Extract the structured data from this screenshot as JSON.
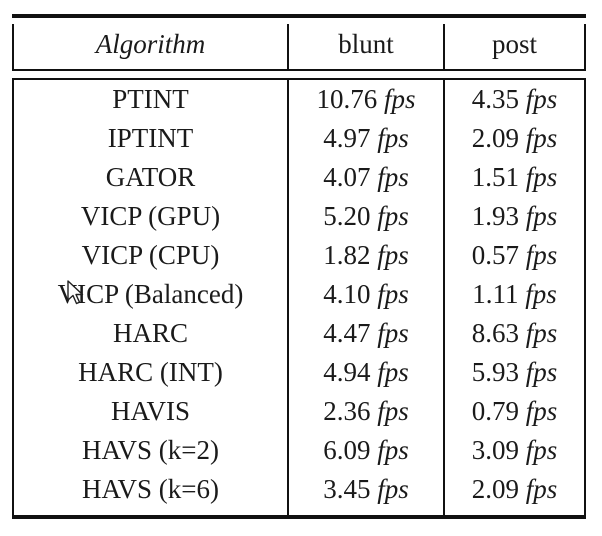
{
  "table": {
    "headers": {
      "algorithm": "Algorithm",
      "blunt": "blunt",
      "post": "post"
    },
    "unit": "fps",
    "rows": [
      {
        "algorithm": "PTINT",
        "blunt": "10.76",
        "post": "4.35"
      },
      {
        "algorithm": "IPTINT",
        "blunt": "4.97",
        "post": "2.09"
      },
      {
        "algorithm": "GATOR",
        "blunt": "4.07",
        "post": "1.51"
      },
      {
        "algorithm": "VICP (GPU)",
        "blunt": "5.20",
        "post": "1.93"
      },
      {
        "algorithm": "VICP (CPU)",
        "blunt": "1.82",
        "post": "0.57"
      },
      {
        "algorithm": "VICP (Balanced)",
        "blunt": "4.10",
        "post": "1.11"
      },
      {
        "algorithm": "HARC",
        "blunt": "4.47",
        "post": "8.63"
      },
      {
        "algorithm": "HARC (INT)",
        "blunt": "4.94",
        "post": "5.93"
      },
      {
        "algorithm": "HAVIS",
        "blunt": "2.36",
        "post": "0.79"
      },
      {
        "algorithm": "HAVS (k=2)",
        "blunt": "6.09",
        "post": "3.09"
      },
      {
        "algorithm": "HAVS (k=6)",
        "blunt": "3.45",
        "post": "2.09"
      }
    ]
  },
  "cursor": {
    "icon": "mouse-pointer-icon"
  }
}
